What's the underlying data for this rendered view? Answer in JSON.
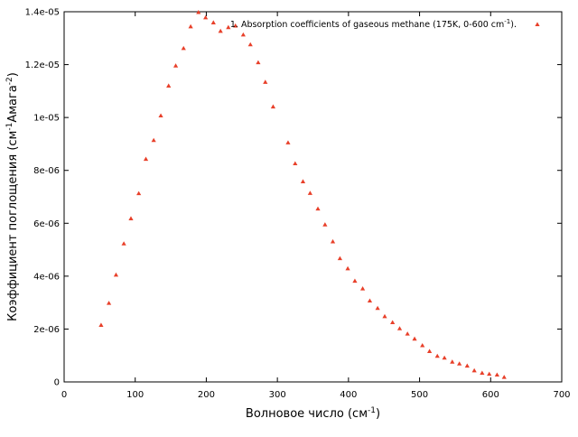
{
  "chart_data": {
    "type": "scatter",
    "xlabel": "Волновое число (см⁻¹)",
    "ylabel": "Коэффициент поглощения (см⁻¹Амага⁻²)",
    "xlim": [
      0,
      700
    ],
    "ylim": [
      0,
      1.4e-05
    ],
    "x_ticks": [
      0,
      100,
      200,
      300,
      400,
      500,
      600,
      700
    ],
    "x_tick_labels": [
      "0",
      "100",
      "200",
      "300",
      "400",
      "500",
      "600",
      "700"
    ],
    "y_ticks": [
      0,
      2e-06,
      4e-06,
      6e-06,
      8e-06,
      1e-05,
      1.2e-05,
      1.4e-05
    ],
    "y_tick_labels": [
      "0",
      "2e-06",
      "4e-06",
      "6e-06",
      "8e-06",
      "1e-05",
      "1.2e-05",
      "1.4e-05"
    ],
    "grid": false,
    "legend_position": "top-right",
    "series": [
      {
        "name": "1. Absorption coefficients of gaseous methane (175K, 0-600 cm⁻¹).",
        "color": "#e8402a",
        "marker": "triangle",
        "x": [
          52,
          63,
          73,
          84,
          94,
          105,
          115,
          126,
          136,
          147,
          157,
          168,
          178,
          189,
          199,
          210,
          220,
          231,
          241,
          252,
          262,
          273,
          283,
          294,
          315,
          325,
          336,
          346,
          357,
          367,
          378,
          388,
          399,
          409,
          420,
          430,
          441,
          451,
          462,
          472,
          483,
          493,
          504,
          514,
          525,
          535,
          546,
          556,
          567,
          577,
          588,
          598,
          609,
          619
        ],
        "y": [
          2.15e-06,
          2.98e-06,
          4.05e-06,
          5.23e-06,
          6.18e-06,
          7.13e-06,
          8.43e-06,
          9.14e-06,
          1.007e-05,
          1.12e-05,
          1.196e-05,
          1.262e-05,
          1.344e-05,
          1.398e-05,
          1.378e-05,
          1.359e-05,
          1.327e-05,
          1.341e-05,
          1.347e-05,
          1.313e-05,
          1.276e-05,
          1.208e-05,
          1.134e-05,
          1.041e-05,
          9.05e-06,
          8.26e-06,
          7.58e-06,
          7.14e-06,
          6.55e-06,
          5.95e-06,
          5.31e-06,
          4.67e-06,
          4.29e-06,
          3.82e-06,
          3.53e-06,
          3.07e-06,
          2.79e-06,
          2.48e-06,
          2.25e-06,
          2.02e-06,
          1.82e-06,
          1.63e-06,
          1.38e-06,
          1.16e-06,
          9.8e-07,
          9.1e-07,
          7.6e-07,
          6.9e-07,
          6.1e-07,
          4.3e-07,
          3.4e-07,
          3e-07,
          2.7e-07,
          1.8e-07
        ]
      }
    ]
  }
}
